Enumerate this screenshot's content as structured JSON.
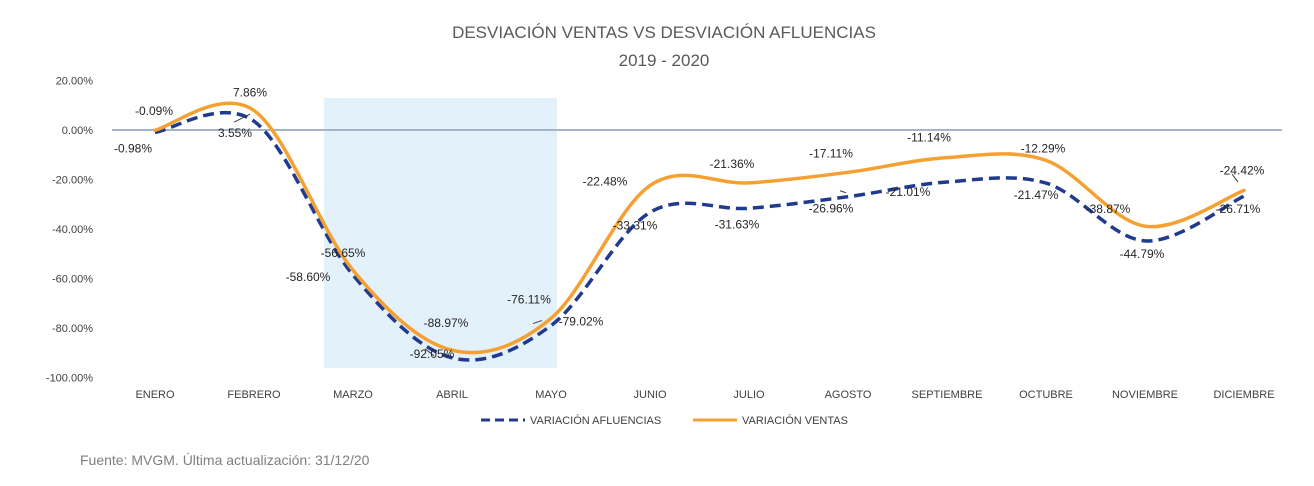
{
  "chart_data": {
    "type": "line",
    "title": "DESVIACIÓN VENTAS VS DESVIACIÓN AFLUENCIAS",
    "subtitle": "2019 - 2020",
    "categories": [
      "ENERO",
      "FEBRERO",
      "MARZO",
      "ABRIL",
      "MAYO",
      "JUNIO",
      "JULIO",
      "AGOSTO",
      "SEPTIEMBRE",
      "OCTUBRE",
      "NOVIEMBRE",
      "DICIEMBRE"
    ],
    "ylim": [
      -100,
      20
    ],
    "yticks": [
      20,
      0,
      -20,
      -40,
      -60,
      -80,
      -100
    ],
    "ytick_labels": [
      "20.00%",
      "0.00%",
      "-20.00%",
      "-40.00%",
      "-60.00%",
      "-80.00%",
      "-100.00%"
    ],
    "series": [
      {
        "name": "VARIACIÓN AFLUENCIAS",
        "color": "#1f3a8f",
        "style": "dashed",
        "values": [
          -0.98,
          3.55,
          -58.6,
          -92.05,
          -79.02,
          -33.31,
          -31.63,
          -26.96,
          -21.01,
          -21.47,
          -44.79,
          -26.71
        ],
        "labels": [
          "-0.98%",
          "3.55%",
          "-58.60%",
          "-92.05%",
          "-79.02%",
          "-33.31%",
          "-31.63%",
          "-26.96%",
          "-21.01%",
          "-21.47%",
          "-44.79%",
          "-26.71%"
        ]
      },
      {
        "name": "VARIACIÓN VENTAS",
        "color": "#f5a031",
        "style": "solid",
        "values": [
          -0.09,
          7.86,
          -56.65,
          -88.97,
          -76.11,
          -22.48,
          -21.36,
          -17.11,
          -11.14,
          -12.29,
          -38.87,
          -24.42
        ],
        "labels": [
          "-0.09%",
          "7.86%",
          "-56.65%",
          "-88.97%",
          "-76.11%",
          "-22.48%",
          "-21.36%",
          "-17.11%",
          "-11.14%",
          "-12.29%",
          "-38.87%",
          "-24.42%"
        ]
      }
    ],
    "highlight_band": {
      "from": "MARZO",
      "to": "MAYO",
      "color": "#e3f1fa"
    },
    "reference_line": {
      "y": 0,
      "color": "#a6b4c8"
    },
    "legend_position": "bottom",
    "grid": false
  },
  "source_text": "Fuente: MVGM. Última actualización: 31/12/20"
}
